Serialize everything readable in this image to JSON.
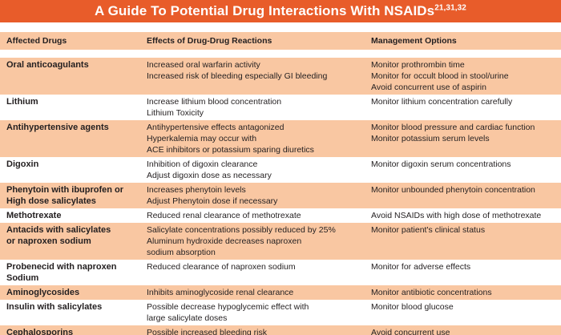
{
  "title": {
    "text": "A Guide To Potential Drug Interactions With NSAIDs",
    "superscript": "21,31,32"
  },
  "colors": {
    "title_bar_orange": "#e85c2a",
    "row_peach": "#f9c7a2",
    "text_dark": "#231f20",
    "title_text": "#ffffff"
  },
  "columns": [
    "Affected Drugs",
    "Effects of Drug-Drug Reactions",
    "Management Options"
  ],
  "rows": [
    {
      "drug": [
        "Oral anticoagulants"
      ],
      "effects": [
        "Increased oral warfarin activity",
        "Increased risk of bleeding especially GI bleeding"
      ],
      "management": [
        "Monitor prothrombin time",
        "Monitor for occult blood in stool/urine",
        "Avoid concurrent use of aspirin"
      ]
    },
    {
      "drug": [
        "Lithium"
      ],
      "effects": [
        "Increase lithium blood concentration",
        "Lithium Toxicity"
      ],
      "management": [
        "Monitor lithium concentration carefully"
      ]
    },
    {
      "drug": [
        "Antihypertensive agents"
      ],
      "effects": [
        "Antihypertensive effects antagonized",
        "Hyperkalemia may occur with",
        "ACE inhibitors or potassium sparing diuretics"
      ],
      "management": [
        "Monitor blood pressure and cardiac function",
        "Monitor potassium serum levels"
      ]
    },
    {
      "drug": [
        "Digoxin"
      ],
      "effects": [
        "Inhibition of digoxin clearance",
        "Adjust digoxin dose as necessary"
      ],
      "management": [
        "Monitor digoxin serum concentrations"
      ]
    },
    {
      "drug": [
        "Phenytoin with ibuprofen or",
        "High dose salicylates"
      ],
      "effects": [
        "Increases phenytoin levels",
        "Adjust Phenytoin dose if necessary"
      ],
      "management": [
        "Monitor unbounded phenytoin concentration"
      ]
    },
    {
      "drug": [
        "Methotrexate"
      ],
      "effects": [
        "Reduced renal clearance of methotrexate"
      ],
      "management": [
        "Avoid NSAIDs with high dose of methotrexate"
      ]
    },
    {
      "drug": [
        "Antacids with salicylates",
        "or naproxen sodium"
      ],
      "effects": [
        "Salicylate concentrations possibly reduced by 25%",
        "Aluminum hydroxide decreases naproxen",
        "sodium absorption"
      ],
      "management": [
        "Monitor patient's clinical status"
      ]
    },
    {
      "drug": [
        "Probenecid with naproxen",
        "Sodium"
      ],
      "effects": [
        "Reduced clearance of naproxen sodium"
      ],
      "management": [
        "Monitor for adverse effects"
      ]
    },
    {
      "drug": [
        "Aminoglycosides"
      ],
      "effects": [
        "Inhibits aminoglycoside renal clearance"
      ],
      "management": [
        "Monitor antibiotic concentrations"
      ]
    },
    {
      "drug": [
        "Insulin with salicylates"
      ],
      "effects": [
        "Possible decrease hypoglycemic effect with",
        "large salicylate doses"
      ],
      "management": [
        "Monitor blood glucose"
      ]
    },
    {
      "drug": [
        "Cephalosporins"
      ],
      "effects": [
        "Possible increased bleeding risk"
      ],
      "management": [
        "Avoid concurrent use"
      ]
    }
  ]
}
